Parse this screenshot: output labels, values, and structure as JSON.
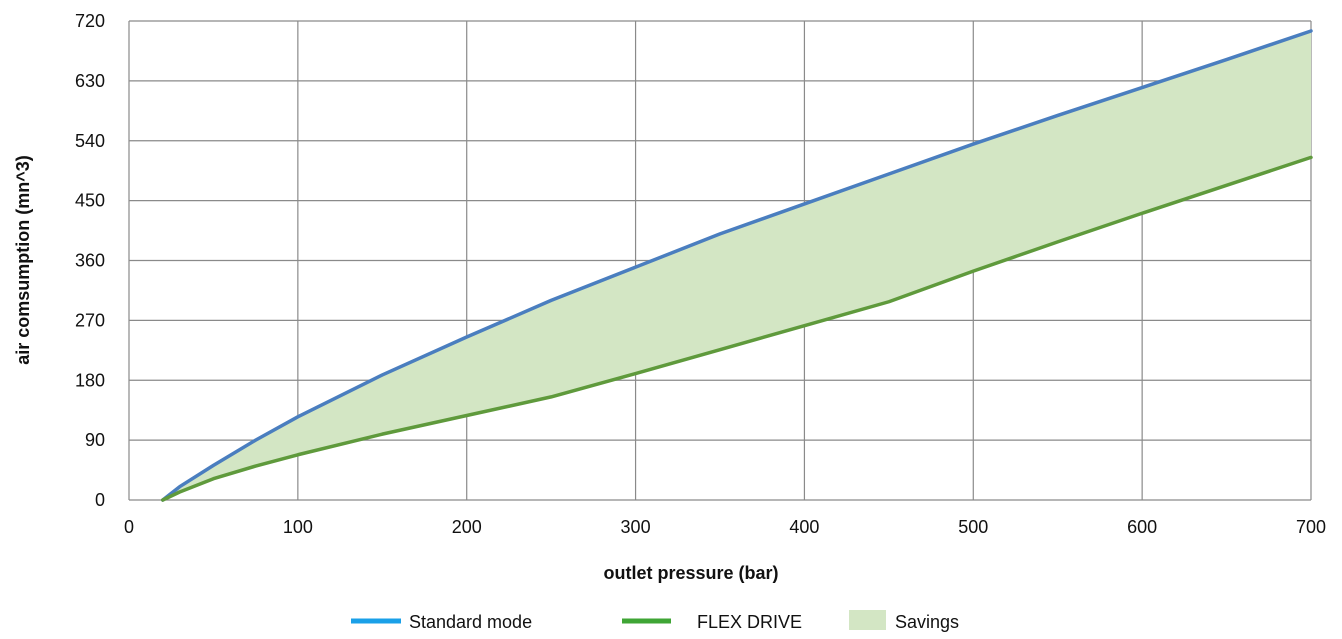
{
  "chart_data": {
    "type": "area",
    "xlabel": "outlet pressure (bar)",
    "ylabel": "air comsumption (mn^3)",
    "xlim": [
      0,
      700
    ],
    "ylim": [
      0,
      720
    ],
    "x_ticks": [
      "0",
      "100",
      "200",
      "300",
      "400",
      "500",
      "600",
      "700"
    ],
    "y_ticks": [
      "0",
      "90",
      "180",
      "270",
      "360",
      "450",
      "540",
      "630",
      "720"
    ],
    "grid": true,
    "legend_position": "bottom",
    "x": [
      20,
      30,
      50,
      75,
      100,
      150,
      200,
      250,
      300,
      350,
      400,
      450,
      500,
      550,
      600,
      650,
      700
    ],
    "series": [
      {
        "name": "Standard mode",
        "color": "#4a7ebf",
        "legend_color": "#1aa0e8",
        "values": [
          0,
          20,
          52,
          90,
          125,
          188,
          245,
          300,
          350,
          400,
          445,
          490,
          535,
          578,
          620,
          662,
          705
        ]
      },
      {
        "name": "FLEX DRIVE",
        "color": "#5f9a3c",
        "legend_color": "#3fa535",
        "values": [
          0,
          12,
          32,
          51,
          68,
          99,
          127,
          155,
          190,
          226,
          262,
          298,
          344,
          388,
          431,
          473,
          515
        ]
      }
    ],
    "fill": {
      "name": "Savings",
      "color": "#d3e6c4",
      "between": [
        "Standard mode",
        "FLEX DRIVE"
      ]
    }
  }
}
